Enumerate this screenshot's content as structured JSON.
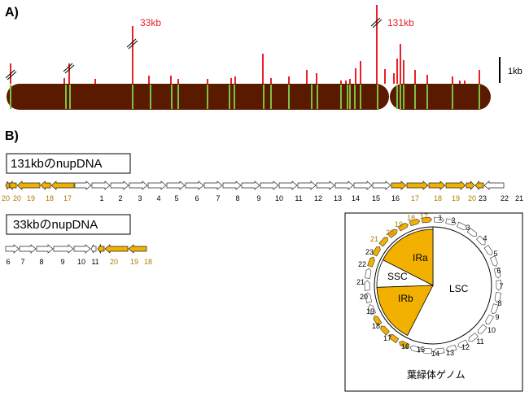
{
  "panel_a": {
    "label": "A)",
    "peak_labels": [
      "33kb",
      "131kb"
    ],
    "scale_label": "1kb"
  },
  "panel_b": {
    "label": "B)",
    "box1_title": "131kbのnupDNA",
    "box2_title": "33kbのnupDNA",
    "track1_genes": [
      {
        "n": "20",
        "type": "ir"
      },
      {
        "n": "20",
        "type": "ir"
      },
      {
        "n": "19",
        "type": "ir"
      },
      {
        "n": "18",
        "type": "ir"
      },
      {
        "n": "17",
        "type": "ir"
      },
      {
        "n": "1",
        "type": "lsc"
      },
      {
        "n": "2",
        "type": "lsc"
      },
      {
        "n": "3",
        "type": "lsc"
      },
      {
        "n": "4",
        "type": "lsc"
      },
      {
        "n": "5",
        "type": "lsc"
      },
      {
        "n": "6",
        "type": "lsc"
      },
      {
        "n": "7",
        "type": "lsc"
      },
      {
        "n": "8",
        "type": "lsc"
      },
      {
        "n": "9",
        "type": "lsc"
      },
      {
        "n": "10",
        "type": "lsc"
      },
      {
        "n": "11",
        "type": "lsc"
      },
      {
        "n": "12",
        "type": "lsc"
      },
      {
        "n": "13",
        "type": "lsc"
      },
      {
        "n": "14",
        "type": "lsc"
      },
      {
        "n": "15",
        "type": "lsc"
      },
      {
        "n": "16",
        "type": "lsc"
      },
      {
        "n": "17",
        "type": "ir"
      },
      {
        "n": "18",
        "type": "ir"
      },
      {
        "n": "19",
        "type": "ir"
      },
      {
        "n": "20",
        "type": "ir"
      },
      {
        "n": "21",
        "type": "ir"
      },
      {
        "n": "23",
        "type": "lsc"
      },
      {
        "n": "22",
        "type": "lsc"
      },
      {
        "n": "21",
        "type": "lsc"
      }
    ],
    "track2_genes": [
      {
        "n": "6",
        "type": "lsc"
      },
      {
        "n": "7",
        "type": "lsc"
      },
      {
        "n": "8",
        "type": "lsc"
      },
      {
        "n": "9",
        "type": "lsc"
      },
      {
        "n": "10",
        "type": "lsc"
      },
      {
        "n": "11",
        "type": "lsc"
      },
      {
        "n": "20",
        "type": "ir"
      },
      {
        "n": "19",
        "type": "ir"
      },
      {
        "n": "18",
        "type": "ir"
      }
    ],
    "circle": {
      "region_labels": [
        "IRa",
        "IRb",
        "SSC",
        "LSC"
      ],
      "caption": "葉緑体ゲノム",
      "numbers": [
        "1",
        "2",
        "3",
        "4",
        "5",
        "6",
        "7",
        "8",
        "9",
        "10",
        "11",
        "12",
        "13",
        "14",
        "15",
        "16",
        "17",
        "18",
        "19",
        "20",
        "21",
        "22",
        "23",
        "21",
        "20",
        "19",
        "18",
        "17"
      ],
      "ir_numbers": [
        "21",
        "20",
        "19",
        "18",
        "17"
      ]
    }
  },
  "colors": {
    "chromosome": "#5a1a00",
    "green_band": "#7dc142",
    "red_peak": "#e8202a",
    "ir_gold": "#f2b100",
    "ir_label": "#b07a00"
  }
}
